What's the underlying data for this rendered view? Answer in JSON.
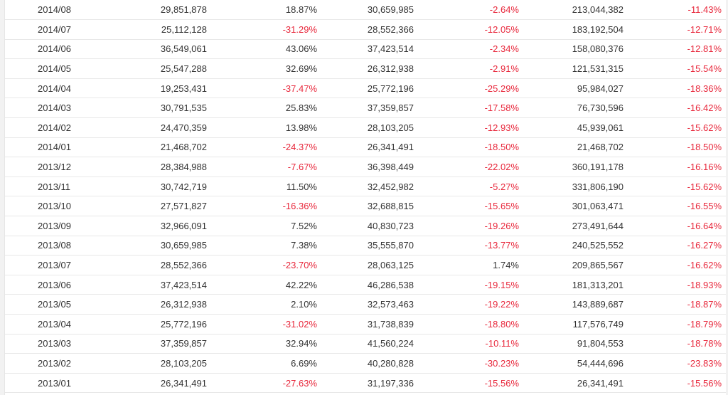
{
  "colors": {
    "text": "#333333",
    "negative": "#e8283c",
    "row_border": "#e8e8e8"
  },
  "rows": [
    [
      "2014/08",
      "29,851,878",
      "18.87%",
      "30,659,985",
      "-2.64%",
      "213,044,382",
      "-11.43%"
    ],
    [
      "2014/07",
      "25,112,128",
      "-31.29%",
      "28,552,366",
      "-12.05%",
      "183,192,504",
      "-12.71%"
    ],
    [
      "2014/06",
      "36,549,061",
      "43.06%",
      "37,423,514",
      "-2.34%",
      "158,080,376",
      "-12.81%"
    ],
    [
      "2014/05",
      "25,547,288",
      "32.69%",
      "26,312,938",
      "-2.91%",
      "121,531,315",
      "-15.54%"
    ],
    [
      "2014/04",
      "19,253,431",
      "-37.47%",
      "25,772,196",
      "-25.29%",
      "95,984,027",
      "-18.36%"
    ],
    [
      "2014/03",
      "30,791,535",
      "25.83%",
      "37,359,857",
      "-17.58%",
      "76,730,596",
      "-16.42%"
    ],
    [
      "2014/02",
      "24,470,359",
      "13.98%",
      "28,103,205",
      "-12.93%",
      "45,939,061",
      "-15.62%"
    ],
    [
      "2014/01",
      "21,468,702",
      "-24.37%",
      "26,341,491",
      "-18.50%",
      "21,468,702",
      "-18.50%"
    ],
    [
      "2013/12",
      "28,384,988",
      "-7.67%",
      "36,398,449",
      "-22.02%",
      "360,191,178",
      "-16.16%"
    ],
    [
      "2013/11",
      "30,742,719",
      "11.50%",
      "32,452,982",
      "-5.27%",
      "331,806,190",
      "-15.62%"
    ],
    [
      "2013/10",
      "27,571,827",
      "-16.36%",
      "32,688,815",
      "-15.65%",
      "301,063,471",
      "-16.55%"
    ],
    [
      "2013/09",
      "32,966,091",
      "7.52%",
      "40,830,723",
      "-19.26%",
      "273,491,644",
      "-16.64%"
    ],
    [
      "2013/08",
      "30,659,985",
      "7.38%",
      "35,555,870",
      "-13.77%",
      "240,525,552",
      "-16.27%"
    ],
    [
      "2013/07",
      "28,552,366",
      "-23.70%",
      "28,063,125",
      "1.74%",
      "209,865,567",
      "-16.62%"
    ],
    [
      "2013/06",
      "37,423,514",
      "42.22%",
      "46,286,538",
      "-19.15%",
      "181,313,201",
      "-18.93%"
    ],
    [
      "2013/05",
      "26,312,938",
      "2.10%",
      "32,573,463",
      "-19.22%",
      "143,889,687",
      "-18.87%"
    ],
    [
      "2013/04",
      "25,772,196",
      "-31.02%",
      "31,738,839",
      "-18.80%",
      "117,576,749",
      "-18.79%"
    ],
    [
      "2013/03",
      "37,359,857",
      "32.94%",
      "41,560,224",
      "-10.11%",
      "91,804,553",
      "-18.78%"
    ],
    [
      "2013/02",
      "28,103,205",
      "6.69%",
      "40,280,828",
      "-30.23%",
      "54,444,696",
      "-23.83%"
    ],
    [
      "2013/01",
      "26,341,491",
      "-27.63%",
      "31,197,336",
      "-15.56%",
      "26,341,491",
      "-15.56%"
    ]
  ]
}
